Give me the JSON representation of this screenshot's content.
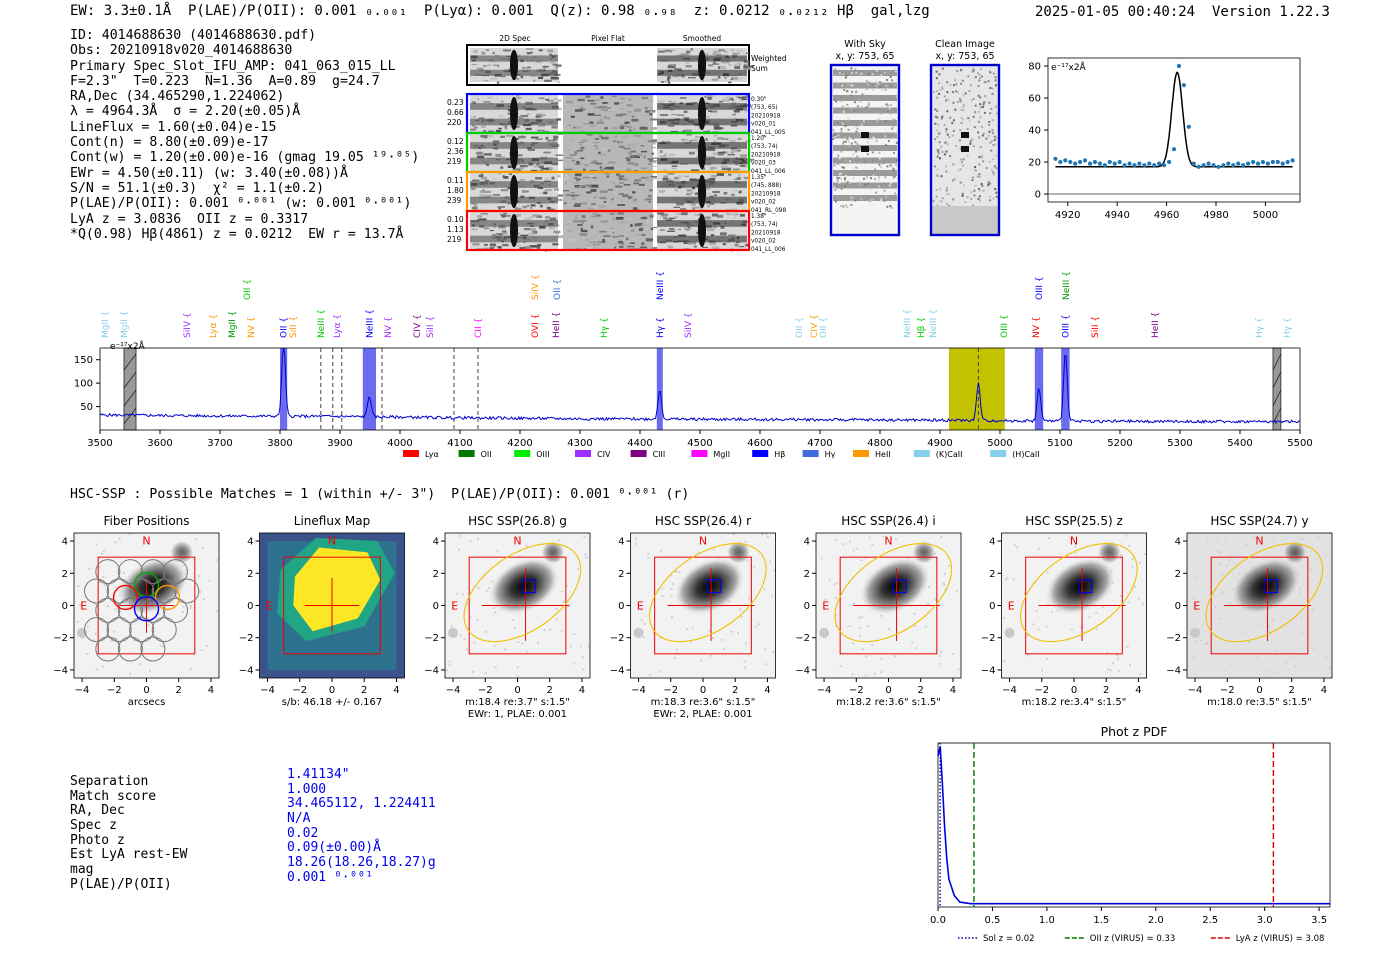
{
  "header": {
    "summary": "EW: 3.3±0.1Å  P(LAE)/P(OII): 0.001 ₀.₀₀₁  P(Lyα): 0.001  Q(z): 0.98 ₀.₉₈  z: 0.0212 ₀.₀₂₁₂ Hβ  gal,lzg",
    "datetime": "2025-01-05 00:40:24",
    "version": "Version 1.22.3"
  },
  "info_lines": [
    "ID: 4014688630 (4014688630.pdf)",
    "Obs: 20210918v020_4014688630",
    "Primary Spec_Slot_IFU_AMP: 041_063_015_LL",
    "F=2.3\"  T=0.223  N=1.36  A=0.89  g=24.7",
    "RA,Dec (34.465290,1.224062)",
    "λ = 4964.3Å  σ = 2.20(±0.05)Å",
    "LineFlux = 1.60(±0.04)e-15",
    "Cont(n) = 8.80(±0.09)e-17",
    "Cont(w) = 1.20(±0.00)e-16 (gmag 19.05 ¹⁹·⁰⁵)",
    "EWr = 4.50(±0.11) (w: 3.40(±0.08))Å",
    "S/N = 51.1(±0.3)  χ² = 1.1(±0.2)",
    "P(LAE)/P(OII): 0.001 ⁰·⁰⁰¹ (w: 0.001 ⁰·⁰⁰¹)",
    "LyA z = 3.0836  OII z = 0.3317",
    "*Q(0.98) Hβ(4861) z = 0.0212  EW r = 13.7Å"
  ],
  "stamps": {
    "col_headers": [
      "2D Spec",
      "Pixel Flat",
      "Smoothed"
    ],
    "weighted_sum_label": "Weighted Sum",
    "rows": [
      {
        "left": [
          "0.23",
          "0.66",
          "220"
        ],
        "right": [
          "0.30\"",
          "(753, 65)",
          "20210918",
          "v020_01",
          "041_LL_005"
        ],
        "color": "#0000ff"
      },
      {
        "left": [
          "0.12",
          "2.36",
          "219"
        ],
        "right": [
          "1.20\"",
          "(753, 74)",
          "20210918",
          "v020_03",
          "041_LL_006"
        ],
        "color": "#00cc00"
      },
      {
        "left": [
          "0.11",
          "1.80",
          "239"
        ],
        "right": [
          "1.35\"",
          "(745, 888)",
          "20210918",
          "v020_02",
          "041_RL_098"
        ],
        "color": "#ff9900"
      },
      {
        "left": [
          "0.10",
          "1.13",
          "219"
        ],
        "right": [
          "1.38\"",
          "(753, 74)",
          "20210918",
          "v020_02",
          "041_LL_006"
        ],
        "color": "#ff0000"
      }
    ],
    "with_sky": {
      "title": "With Sky",
      "coords": "x, y: 753, 65"
    },
    "clean_image": {
      "title": "Clean Image",
      "coords": "x, y: 753, 65"
    }
  },
  "line_fit_chart": {
    "type": "scatter",
    "unit_label": "e⁻¹⁷x2Å",
    "xlim": [
      4912,
      5014
    ],
    "ylim": [
      -5,
      85
    ],
    "xticks": [
      4920,
      4940,
      4960,
      4980,
      5000
    ],
    "yticks": [
      0,
      20,
      40,
      60,
      80
    ],
    "points_x": [
      4915,
      4917,
      4919,
      4921,
      4923,
      4925,
      4927,
      4929,
      4931,
      4933,
      4935,
      4937,
      4939,
      4941,
      4943,
      4945,
      4947,
      4949,
      4951,
      4953,
      4955,
      4957,
      4959,
      4961,
      4963,
      4965,
      4967,
      4969,
      4971,
      4973,
      4975,
      4977,
      4979,
      4981,
      4983,
      4985,
      4987,
      4989,
      4991,
      4993,
      4995,
      4997,
      4999,
      5001,
      5003,
      5005,
      5007,
      5009,
      5011
    ],
    "points_y": [
      22,
      20,
      21,
      20,
      19,
      20,
      21,
      19,
      20,
      19,
      18,
      20,
      19,
      20,
      18,
      19,
      18,
      19,
      18,
      19,
      18,
      19,
      18,
      20,
      28,
      80,
      68,
      42,
      19,
      17,
      18,
      19,
      18,
      17,
      18,
      19,
      18,
      19,
      18,
      19,
      20,
      19,
      20,
      19,
      20,
      20,
      19,
      20,
      21
    ],
    "continuum": 17,
    "peak_center": 4964.3,
    "peak_amplitude": 59,
    "peak_sigma": 2.2
  },
  "spectrum": {
    "unit_label": "e⁻¹⁷x2Å",
    "xlim": [
      3500,
      5500
    ],
    "ylim": [
      0,
      175
    ],
    "xticks": [
      3500,
      3600,
      3700,
      3800,
      3900,
      4000,
      4100,
      4200,
      4300,
      4400,
      4500,
      4600,
      4700,
      4800,
      4900,
      5000,
      5100,
      5200,
      5300,
      5400,
      5500
    ],
    "yticks": [
      50,
      100,
      150
    ],
    "hatched_regions": [
      [
        3540,
        3560
      ],
      [
        5455,
        5468
      ]
    ],
    "blue_bands": [
      [
        3800,
        3812
      ],
      [
        3938,
        3960
      ],
      [
        4428,
        4438
      ],
      [
        5058,
        5072
      ],
      [
        5102,
        5116
      ]
    ],
    "yellow_band": [
      4915,
      5008
    ],
    "dashed_lines": [
      3868,
      3888,
      3903,
      3970,
      4090,
      4130,
      4964
    ],
    "emission_peaks": [
      {
        "x": 3806,
        "h": 158
      },
      {
        "x": 3949,
        "h": 45
      },
      {
        "x": 4433,
        "h": 62
      },
      {
        "x": 4964,
        "h": 80
      },
      {
        "x": 5065,
        "h": 70
      },
      {
        "x": 5109,
        "h": 150
      }
    ],
    "baseline": [
      [
        3500,
        32
      ],
      [
        3700,
        30
      ],
      [
        3900,
        29
      ],
      [
        4100,
        26
      ],
      [
        4300,
        24
      ],
      [
        4500,
        23
      ],
      [
        4700,
        22
      ],
      [
        4900,
        21
      ],
      [
        5100,
        19
      ],
      [
        5300,
        18
      ],
      [
        5500,
        18
      ]
    ],
    "line_labels": [
      {
        "name": "MgII",
        "x": 3508,
        "row": 1,
        "color": "#87ceeb"
      },
      {
        "name": "MgII",
        "x": 3540,
        "row": 1,
        "color": "#87ceeb"
      },
      {
        "name": "SiIV",
        "x": 3645,
        "row": 1,
        "color": "#9b30ff"
      },
      {
        "name": "Lyα",
        "x": 3688,
        "row": 1,
        "color": "#ff9900"
      },
      {
        "name": "MgII",
        "x": 3720,
        "row": 1,
        "color": "#009900"
      },
      {
        "name": "NV",
        "x": 3752,
        "row": 1,
        "color": "#ff9900"
      },
      {
        "name": "OII",
        "x": 3806,
        "row": 1,
        "color": "#0000ff"
      },
      {
        "name": "SiII",
        "x": 3822,
        "row": 1,
        "color": "#ff9900"
      },
      {
        "name": "OII",
        "x": 3745,
        "row": 0,
        "color": "#00cc00"
      },
      {
        "name": "NeIII",
        "x": 3868,
        "row": 1,
        "color": "#00cc00"
      },
      {
        "name": "Lyα",
        "x": 3895,
        "row": 1,
        "color": "#9b30ff"
      },
      {
        "name": "NeIII",
        "x": 3949,
        "row": 1,
        "color": "#0000ff"
      },
      {
        "name": "NV",
        "x": 3980,
        "row": 1,
        "color": "#9b30ff"
      },
      {
        "name": "CIV",
        "x": 4028,
        "row": 1,
        "color": "#800080"
      },
      {
        "name": "SiII",
        "x": 4050,
        "row": 1,
        "color": "#9b30ff"
      },
      {
        "name": "CII",
        "x": 4130,
        "row": 1,
        "color": "#ff00ff"
      },
      {
        "name": "OVI",
        "x": 4225,
        "row": 1,
        "color": "#ff0000"
      },
      {
        "name": "SiIV",
        "x": 4225,
        "row": 0,
        "color": "#ff9900"
      },
      {
        "name": "HeII",
        "x": 4260,
        "row": 1,
        "color": "#800080"
      },
      {
        "name": "OII",
        "x": 4262,
        "row": 0,
        "color": "#4169e1"
      },
      {
        "name": "Hγ",
        "x": 4340,
        "row": 1,
        "color": "#00cc00"
      },
      {
        "name": "Hγ",
        "x": 4433,
        "row": 1,
        "color": "#0000ff"
      },
      {
        "name": "NeIII",
        "x": 4433,
        "row": 0,
        "color": "#0000ff"
      },
      {
        "name": "SiIV",
        "x": 4480,
        "row": 1,
        "color": "#9b30ff"
      },
      {
        "name": "OII",
        "x": 4665,
        "row": 1,
        "color": "#87ceeb"
      },
      {
        "name": "CIV",
        "x": 4690,
        "row": 1,
        "color": "#ff9900"
      },
      {
        "name": "OII",
        "x": 4705,
        "row": 1,
        "color": "#87ceeb"
      },
      {
        "name": "NeIII",
        "x": 4845,
        "row": 1,
        "color": "#87ceeb"
      },
      {
        "name": "Hβ",
        "x": 4868,
        "row": 1,
        "color": "#00cc00"
      },
      {
        "name": "NeIII",
        "x": 4888,
        "row": 1,
        "color": "#87ceeb"
      },
      {
        "name": "OIII",
        "x": 5007,
        "row": 1,
        "color": "#00cc00"
      },
      {
        "name": "NV",
        "x": 5060,
        "row": 1,
        "color": "#ff0000"
      },
      {
        "name": "OIII",
        "x": 5065,
        "row": 0,
        "color": "#0000ff"
      },
      {
        "name": "OIII",
        "x": 5109,
        "row": 1,
        "color": "#0000ff"
      },
      {
        "name": "NeIII",
        "x": 5110,
        "row": 0,
        "color": "#009900"
      },
      {
        "name": "SiII",
        "x": 5158,
        "row": 1,
        "color": "#ff0000"
      },
      {
        "name": "HeII",
        "x": 5258,
        "row": 1,
        "color": "#800080"
      },
      {
        "name": "Hγ",
        "x": 5432,
        "row": 1,
        "color": "#87ceeb"
      },
      {
        "name": "Hγ",
        "x": 5478,
        "row": 1,
        "color": "#87ceeb"
      }
    ],
    "legend": [
      {
        "label": "Lyα",
        "color": "#ff0000"
      },
      {
        "label": "OII",
        "color": "#007700"
      },
      {
        "label": "OIII",
        "color": "#00ee00"
      },
      {
        "label": "CIV",
        "color": "#9b30ff"
      },
      {
        "label": "CIII",
        "color": "#800080"
      },
      {
        "label": "MgII",
        "color": "#ff00ff"
      },
      {
        "label": "Hβ",
        "color": "#0000ff"
      },
      {
        "label": "Hγ",
        "color": "#4169e1"
      },
      {
        "label": "HeII",
        "color": "#ff9900"
      },
      {
        "label": "(K)CaII",
        "color": "#87ceeb"
      },
      {
        "label": "(H)CaII",
        "color": "#87ceeb"
      }
    ]
  },
  "hsc_line": "HSC-SSP : Possible Matches = 1 (within +/- 3\")  P(LAE)/P(OII): 0.001 ⁰·⁰⁰¹ (r)",
  "cutouts": [
    {
      "title": "Fiber Positions",
      "caption": [
        "arcsecs"
      ],
      "kind": "fibers"
    },
    {
      "title": "Lineflux Map",
      "caption": [
        "s/b: 46.18 +/- 0.167"
      ],
      "kind": "lineflux"
    },
    {
      "title": "HSC SSP(26.8) g",
      "caption": [
        "m:18.4  re:3.7\"  s:1.5\"",
        "EWr: 1, PLAE: 0.001"
      ],
      "kind": "hsc"
    },
    {
      "title": "HSC SSP(26.4) r",
      "caption": [
        "m:18.3  re:3.6\"  s:1.5\"",
        "EWr: 2, PLAE: 0.001"
      ],
      "kind": "hsc"
    },
    {
      "title": "HSC SSP(26.4) i",
      "caption": [
        "m:18.2  re:3.6\"  s:1.5\""
      ],
      "kind": "hsc"
    },
    {
      "title": "HSC SSP(25.5) z",
      "caption": [
        "m:18.2  re:3.4\"  s:1.5\""
      ],
      "kind": "hsc"
    },
    {
      "title": "HSC SSP(24.7) y",
      "caption": [
        "m:18.0  re:3.5\"  s:1.5\""
      ],
      "kind": "hsc"
    }
  ],
  "cutout_axis": {
    "ticks": [
      -4,
      -2,
      0,
      2,
      4
    ],
    "north": "N",
    "east": "E"
  },
  "match": {
    "labels": [
      "Separation",
      "Match score",
      "RA, Dec",
      "Spec z",
      "Photo z",
      "Est LyA rest-EW",
      "mag",
      "P(LAE)/P(OII)"
    ],
    "values": [
      "1.41134\"",
      "1.000",
      "34.465112, 1.224411",
      "N/A",
      "0.02",
      "0.09(±0.00)Å",
      "18.26(18.26,18.27)g",
      "0.001 ⁰·⁰⁰¹"
    ]
  },
  "chart_data": {
    "type": "line",
    "title": "Phot z PDF",
    "xlim": [
      0,
      3.6
    ],
    "ylim": [
      0,
      1
    ],
    "xticks": [
      0.0,
      0.5,
      1.0,
      1.5,
      2.0,
      2.5,
      3.0,
      3.5
    ],
    "x": [
      0.0,
      0.02,
      0.04,
      0.06,
      0.08,
      0.1,
      0.15,
      0.2,
      0.3,
      0.5,
      1.0,
      2.0,
      3.0,
      3.6
    ],
    "y": [
      0.92,
      0.98,
      0.75,
      0.5,
      0.3,
      0.17,
      0.07,
      0.03,
      0.02,
      0.02,
      0.02,
      0.02,
      0.02,
      0.02
    ],
    "markers": [
      {
        "label": "Sol z = 0.02",
        "x": 0.02,
        "color": "#0000aa",
        "style": "dotted"
      },
      {
        "label": "OII z (VIRUS) = 0.33",
        "x": 0.33,
        "color": "#007700",
        "style": "dashed"
      },
      {
        "label": "LyA z (VIRUS) = 3.08",
        "x": 3.08,
        "color": "#dd0000",
        "style": "dashed"
      }
    ]
  }
}
